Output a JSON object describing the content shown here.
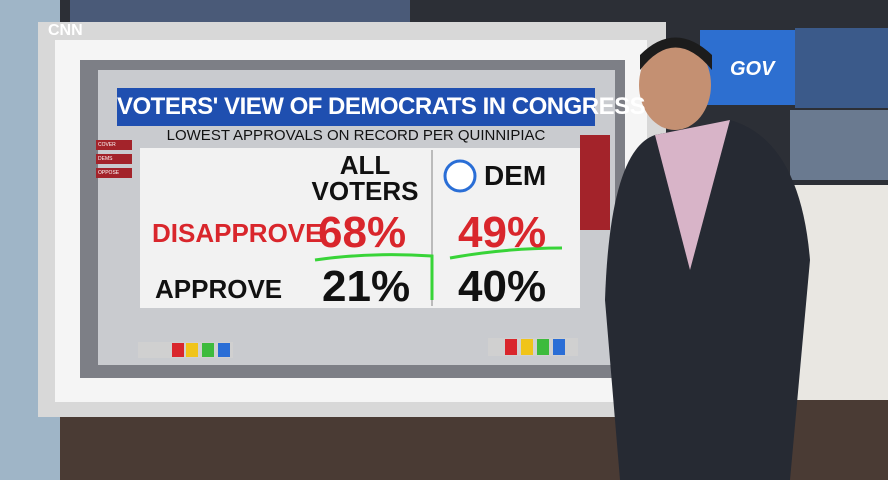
{
  "header": {
    "logo": "CNN",
    "title": "VOTERS' VIEW OF DEMOCRATS IN CONGRESS",
    "subtitle": "LOWEST APPROVALS ON RECORD PER QUINNIPIAC"
  },
  "sidebar": {
    "items": [
      "COVER",
      "DEMS",
      "OPPOSE"
    ]
  },
  "table": {
    "columns": [
      "ALL VOTERS",
      "DEM"
    ],
    "rows": [
      [
        "DISAPPROVE",
        "68%",
        "49%"
      ],
      [
        "APPROVE",
        "21%",
        "40%"
      ]
    ]
  },
  "background_screen": {
    "text": "GOV"
  }
}
